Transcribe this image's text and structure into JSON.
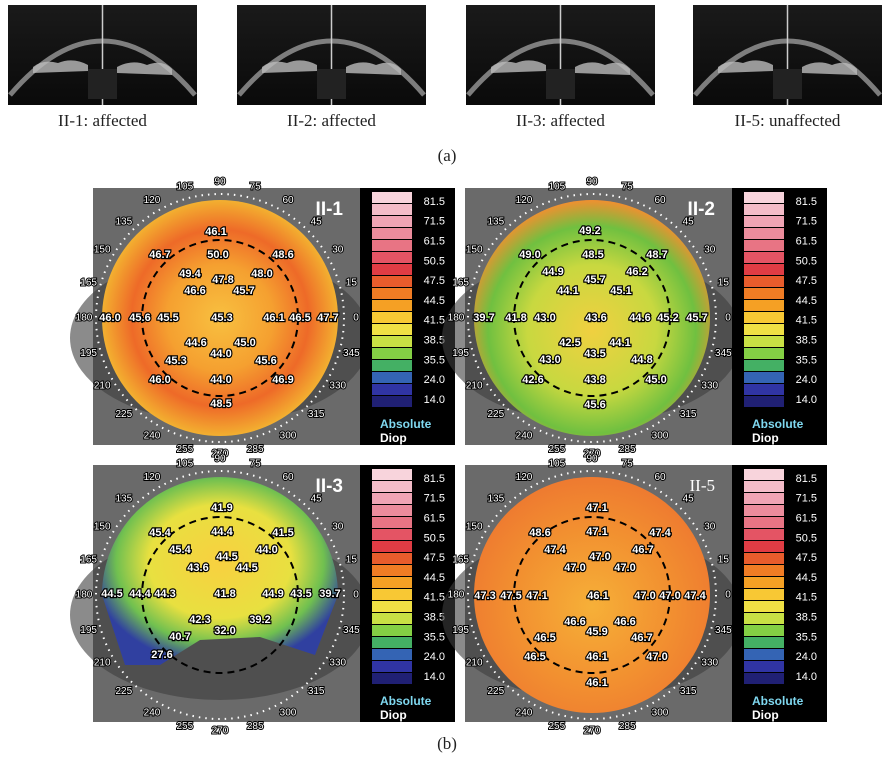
{
  "figure_a": {
    "images": [
      {
        "caption": "II-1: affected"
      },
      {
        "caption": "II-2: affected"
      },
      {
        "caption": "II-3: affected"
      },
      {
        "caption": "II-5: unaffected"
      }
    ],
    "label": "(a)"
  },
  "figure_b": {
    "label": "(b)",
    "color_scale": {
      "labels": [
        "81.5",
        "71.5",
        "61.5",
        "50.5",
        "47.5",
        "44.5",
        "41.5",
        "38.5",
        "35.5",
        "24.0",
        "14.0"
      ],
      "mode": "Absolute",
      "unit": "Diop"
    },
    "angles": [
      "90",
      "75",
      "60",
      "45",
      "30",
      "15",
      "0",
      "345",
      "330",
      "315",
      "300",
      "285",
      "270",
      "255",
      "240",
      "225",
      "210",
      "195",
      "180",
      "165",
      "150",
      "135",
      "120",
      "105"
    ],
    "maps": [
      {
        "label": "II-1",
        "values": [
          "46.1",
          "46.7",
          "50.0",
          "48.6",
          "49.4",
          "48.0",
          "47.8",
          "46.6",
          "45.7",
          "46.0",
          "45.6",
          "45.5",
          "45.3",
          "46.1",
          "46.5",
          "47.7",
          "44.6",
          "45.0",
          "45.3",
          "44.0",
          "45.6",
          "46.0",
          "44.0",
          "46.9",
          "48.5"
        ]
      },
      {
        "label": "II-2",
        "values": [
          "49.2",
          "49.0",
          "48.5",
          "48.7",
          "44.9",
          "45.7",
          "46.2",
          "44.1",
          "45.1",
          "39.7",
          "41.8",
          "43.0",
          "43.6",
          "44.6",
          "45.2",
          "45.7",
          "42.5",
          "44.1",
          "43.0",
          "43.5",
          "44.8",
          "42.6",
          "43.8",
          "45.0",
          "45.6"
        ]
      },
      {
        "label": "II-3",
        "values": [
          "41.9",
          "45.4",
          "44.4",
          "41.5",
          "45.4",
          "44.5",
          "44.0",
          "43.6",
          "44.5",
          "44.5",
          "44.4",
          "44.3",
          "41.8",
          "44.9",
          "43.5",
          "39.7",
          "42.3",
          "39.2",
          "40.7",
          "32.0",
          "27.6"
        ]
      },
      {
        "label": "II-5",
        "values": [
          "47.1",
          "48.6",
          "47.1",
          "47.4",
          "47.4",
          "47.0",
          "46.7",
          "47.0",
          "47.0",
          "47.3",
          "47.5",
          "47.1",
          "46.1",
          "47.0",
          "47.0",
          "47.4",
          "46.6",
          "46.6",
          "46.5",
          "45.9",
          "46.7",
          "46.5",
          "46.1",
          "47.0",
          "46.1"
        ]
      }
    ]
  }
}
